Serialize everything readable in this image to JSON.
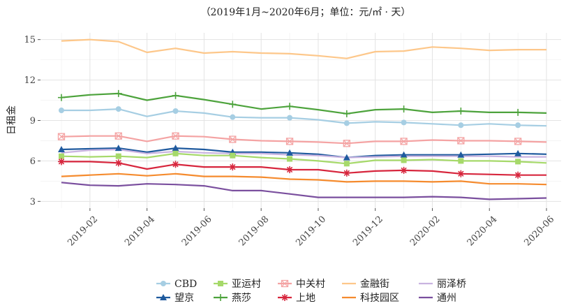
{
  "chart_data": {
    "type": "line",
    "title": "（2019年1月~2020年6月；单位：元/㎡ · 天）",
    "xlabel": "",
    "ylabel": "日租金",
    "ylim": [
      2.5,
      15.5
    ],
    "yticks": [
      3,
      6,
      9,
      12,
      15
    ],
    "ytick_labels": [
      "3",
      "6",
      "9",
      "12",
      "15"
    ],
    "x": [
      "2019-01",
      "2019-02",
      "2019-03",
      "2019-04",
      "2019-05",
      "2019-06",
      "2019-07",
      "2019-08",
      "2019-09",
      "2019-10",
      "2019-11",
      "2019-12",
      "2020-01",
      "2020-02",
      "2020-03",
      "2020-04",
      "2020-05",
      "2020-06"
    ],
    "xtick_labels": [
      "2019-02",
      "2019-04",
      "2019-06",
      "2019-08",
      "2019-10",
      "2019-12",
      "2020-02",
      "2020-04",
      "2020-06"
    ],
    "grid": true,
    "legend_position": "bottom",
    "series": [
      {
        "name": "CBD",
        "color": "#a6cee3",
        "marker": "circle",
        "values": [
          9.75,
          9.75,
          9.85,
          9.3,
          9.7,
          9.55,
          9.25,
          9.2,
          9.2,
          9.05,
          8.8,
          8.9,
          8.85,
          8.75,
          8.65,
          8.75,
          8.65,
          8.6
        ]
      },
      {
        "name": "望京",
        "color": "#1f5a9e",
        "marker": "triangle",
        "values": [
          6.85,
          6.9,
          6.95,
          6.65,
          6.95,
          6.85,
          6.65,
          6.65,
          6.6,
          6.5,
          6.25,
          6.4,
          6.45,
          6.45,
          6.45,
          6.5,
          6.55,
          6.5
        ]
      },
      {
        "name": "亚运村",
        "color": "#a6d96a",
        "marker": "square",
        "values": [
          6.35,
          6.3,
          6.35,
          6.25,
          6.55,
          6.4,
          6.4,
          6.25,
          6.15,
          6.0,
          5.8,
          6.05,
          6.05,
          6.1,
          6.0,
          6.0,
          5.95,
          5.85
        ]
      },
      {
        "name": "燕莎",
        "color": "#4da33c",
        "marker": "plus",
        "values": [
          10.7,
          10.9,
          11.0,
          10.5,
          10.85,
          10.55,
          10.2,
          9.85,
          10.05,
          9.8,
          9.5,
          9.8,
          9.85,
          9.6,
          9.7,
          9.6,
          9.6,
          9.55
        ]
      },
      {
        "name": "中关村",
        "color": "#f4a3a3",
        "marker": "squarecross",
        "values": [
          7.8,
          7.85,
          7.85,
          7.45,
          7.85,
          7.8,
          7.6,
          7.5,
          7.45,
          7.4,
          7.3,
          7.45,
          7.45,
          7.55,
          7.5,
          7.5,
          7.45,
          7.4
        ]
      },
      {
        "name": "上地",
        "color": "#d7263d",
        "marker": "asterisk",
        "values": [
          5.95,
          5.95,
          5.85,
          5.4,
          5.75,
          5.55,
          5.55,
          5.55,
          5.35,
          5.35,
          5.1,
          5.25,
          5.3,
          5.25,
          5.05,
          5.0,
          4.95,
          4.95
        ]
      },
      {
        "name": "金融街",
        "color": "#fdc78a",
        "marker": "none",
        "values": [
          14.9,
          15.0,
          14.85,
          14.05,
          14.35,
          14.0,
          14.1,
          14.0,
          13.95,
          13.8,
          13.6,
          14.1,
          14.15,
          14.45,
          14.35,
          14.2,
          14.25,
          14.25
        ]
      },
      {
        "name": "科技园区",
        "color": "#f58b2e",
        "marker": "none",
        "values": [
          4.85,
          4.95,
          5.05,
          4.9,
          5.05,
          4.85,
          4.85,
          4.8,
          4.65,
          4.6,
          4.45,
          4.5,
          4.5,
          4.45,
          4.5,
          4.3,
          4.3,
          4.25
        ]
      },
      {
        "name": "丽泽桥",
        "color": "#c9b3e0",
        "marker": "none",
        "values": [
          6.6,
          6.8,
          6.85,
          6.55,
          6.7,
          6.6,
          6.55,
          6.55,
          6.45,
          6.4,
          6.25,
          6.3,
          6.35,
          6.35,
          6.35,
          6.35,
          6.3,
          6.3
        ]
      },
      {
        "name": "通州",
        "color": "#7a4f9e",
        "marker": "none",
        "values": [
          4.4,
          4.2,
          4.15,
          4.3,
          4.25,
          4.15,
          3.8,
          3.8,
          3.55,
          3.3,
          3.3,
          3.3,
          3.3,
          3.35,
          3.3,
          3.15,
          3.2,
          3.25
        ]
      }
    ],
    "legend_order": [
      [
        "CBD",
        "亚运村",
        "中关村",
        "金融街",
        "丽泽桥"
      ],
      [
        "望京",
        "燕莎",
        "上地",
        "科技园区",
        "通州"
      ]
    ]
  }
}
